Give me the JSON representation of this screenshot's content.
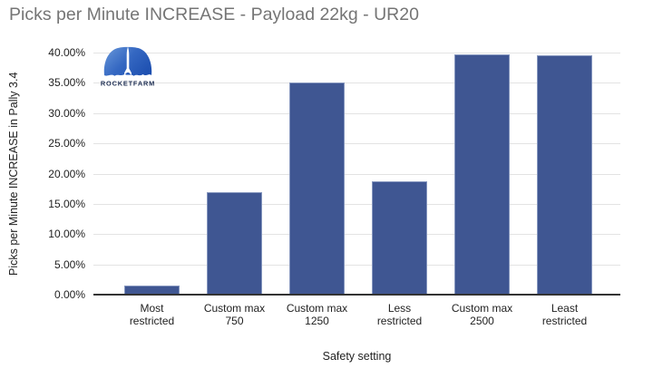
{
  "title": "Picks per Minute INCREASE - Payload 22kg - UR20",
  "logo": {
    "brand": "ROCKETFARM"
  },
  "chart_data": {
    "type": "bar",
    "title": "Picks per Minute INCREASE - Payload 22kg - UR20",
    "categories": [
      "Most restricted",
      "Custom max 750",
      "Custom max 1250",
      "Less restricted",
      "Custom max 2500",
      "Least restricted"
    ],
    "category_lines": [
      [
        "Most",
        "restricted"
      ],
      [
        "Custom max",
        "750"
      ],
      [
        "Custom max",
        "1250"
      ],
      [
        "Less",
        "restricted"
      ],
      [
        "Custom max",
        "2500"
      ],
      [
        "Least",
        "restricted"
      ]
    ],
    "values": [
      1.5,
      16.9,
      35.0,
      18.8,
      39.7,
      39.5
    ],
    "unit": "percent",
    "xlabel": "Safety setting",
    "ylabel": "Picks per Minute INCREASE in Pally 3.4",
    "ylim": [
      0,
      40
    ],
    "ytick_step": 5,
    "ytick_labels": [
      "0.00%",
      "5.00%",
      "10.00%",
      "15.00%",
      "20.00%",
      "25.00%",
      "30.00%",
      "35.00%",
      "40.00%"
    ],
    "grid": true,
    "legend": false,
    "bar_color": "#3f5692"
  },
  "colors": {
    "title_text": "#757575",
    "axis_text": "#222222",
    "gridline": "#e3e3e3",
    "axis_line": "#333333",
    "bar": "#3f5692",
    "logo_blue_light": "#6090d6",
    "logo_blue_dark": "#1d4fb0",
    "logo_wordmark": "#1c2d52",
    "background": "#ffffff"
  }
}
